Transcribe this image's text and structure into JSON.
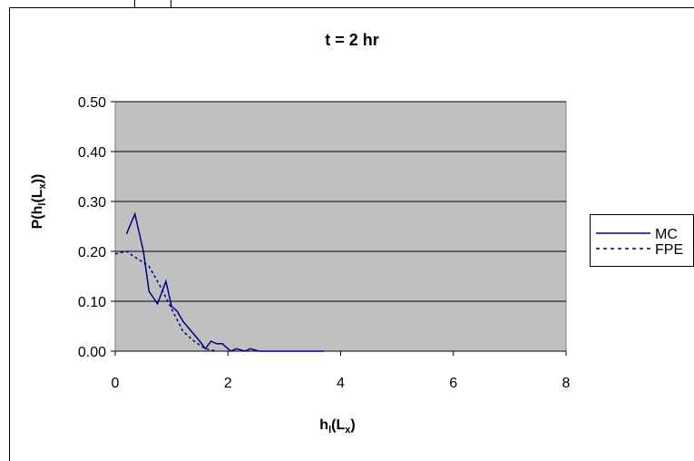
{
  "chart_data": {
    "type": "line",
    "title": "t = 2 hr",
    "xlabel": {
      "main": "h",
      "sub1": "l",
      "paren_open": "(L",
      "sub2": "x",
      "paren_close": ")"
    },
    "ylabel": {
      "main": "P(h",
      "sub1": "l",
      "paren_open": "(L",
      "sub2": "x",
      "paren_close": "))"
    },
    "xlim": [
      0,
      8
    ],
    "ylim": [
      0,
      0.5
    ],
    "xticks": [
      "0",
      "2",
      "4",
      "6",
      "8"
    ],
    "yticks": [
      "0.00",
      "0.10",
      "0.20",
      "0.30",
      "0.40",
      "0.50"
    ],
    "grid": "horizontal",
    "plot_background": "#c0c0c0",
    "legend_position": "right",
    "series": [
      {
        "name": "MC",
        "style": "solid",
        "color": "#000080",
        "x": [
          0.2,
          0.35,
          0.5,
          0.6,
          0.75,
          0.9,
          1.0,
          1.1,
          1.2,
          1.35,
          1.5,
          1.6,
          1.7,
          1.8,
          1.9,
          2.05,
          2.15,
          2.3,
          2.4,
          2.55,
          2.7,
          3.0,
          3.3,
          3.7
        ],
        "y": [
          0.235,
          0.275,
          0.2,
          0.12,
          0.095,
          0.14,
          0.09,
          0.08,
          0.06,
          0.04,
          0.02,
          0.005,
          0.02,
          0.015,
          0.015,
          0.0,
          0.005,
          0.0,
          0.005,
          0.0,
          0.0,
          0.0,
          0.0,
          0.0
        ]
      },
      {
        "name": "FPE",
        "style": "dashed",
        "color": "#000080",
        "x": [
          0.0,
          0.2,
          0.4,
          0.6,
          0.8,
          1.0,
          1.2,
          1.4,
          1.6,
          1.8
        ],
        "y": [
          0.195,
          0.2,
          0.185,
          0.17,
          0.13,
          0.085,
          0.04,
          0.02,
          0.005,
          0.0
        ]
      }
    ]
  }
}
